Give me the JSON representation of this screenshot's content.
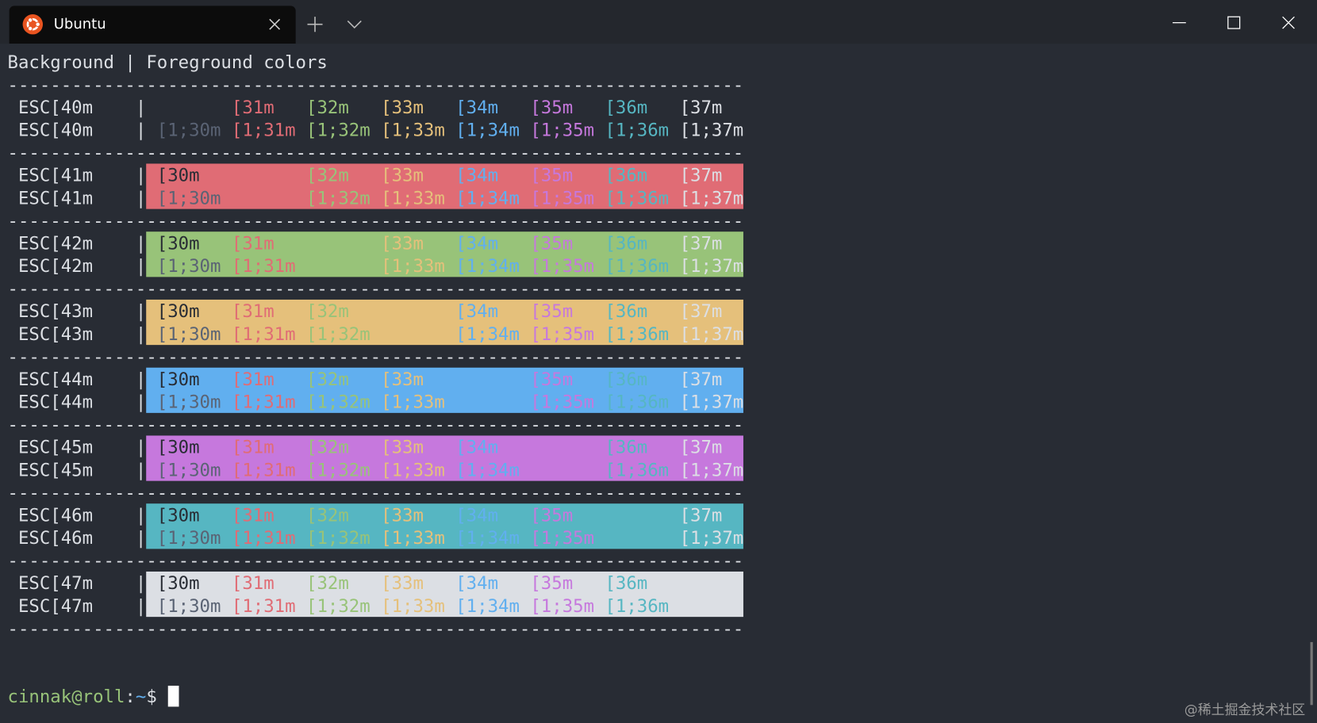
{
  "window": {
    "tab_title": "Ubuntu"
  },
  "terminal": {
    "header": "Background | Foreground colors",
    "separator": "---------------------------------------------------------------------",
    "pipe": "|",
    "colors": [
      "#282c34",
      "#e06c75",
      "#98c379",
      "#e5c07b",
      "#61afef",
      "#c678dd",
      "#56b6c2",
      "#dcdfe4"
    ],
    "bright_black": "#5a6374",
    "blocks": [
      {
        "lines": [
          {
            "label": "ESC[40m",
            "cells": [
              null,
              "[31m",
              "[32m",
              "[33m",
              "[34m",
              "[35m",
              "[36m",
              "[37m"
            ]
          },
          {
            "label": "ESC[40m",
            "cells": [
              "[1;30m",
              "[1;31m",
              "[1;32m",
              "[1;33m",
              "[1;34m",
              "[1;35m",
              "[1;36m",
              "[1;37m"
            ]
          }
        ]
      },
      {
        "lines": [
          {
            "label": "ESC[41m",
            "cells": [
              "[30m",
              null,
              "[32m",
              "[33m",
              "[34m",
              "[35m",
              "[36m",
              "[37m"
            ]
          },
          {
            "label": "ESC[41m",
            "cells": [
              "[1;30m",
              null,
              "[1;32m",
              "[1;33m",
              "[1;34m",
              "[1;35m",
              "[1;36m",
              "[1;37m"
            ]
          }
        ]
      },
      {
        "lines": [
          {
            "label": "ESC[42m",
            "cells": [
              "[30m",
              "[31m",
              null,
              "[33m",
              "[34m",
              "[35m",
              "[36m",
              "[37m"
            ]
          },
          {
            "label": "ESC[42m",
            "cells": [
              "[1;30m",
              "[1;31m",
              null,
              "[1;33m",
              "[1;34m",
              "[1;35m",
              "[1;36m",
              "[1;37m"
            ]
          }
        ]
      },
      {
        "lines": [
          {
            "label": "ESC[43m",
            "cells": [
              "[30m",
              "[31m",
              "[32m",
              null,
              "[34m",
              "[35m",
              "[36m",
              "[37m"
            ]
          },
          {
            "label": "ESC[43m",
            "cells": [
              "[1;30m",
              "[1;31m",
              "[1;32m",
              null,
              "[1;34m",
              "[1;35m",
              "[1;36m",
              "[1;37m"
            ]
          }
        ]
      },
      {
        "lines": [
          {
            "label": "ESC[44m",
            "cells": [
              "[30m",
              "[31m",
              "[32m",
              "[33m",
              null,
              "[35m",
              "[36m",
              "[37m"
            ]
          },
          {
            "label": "ESC[44m",
            "cells": [
              "[1;30m",
              "[1;31m",
              "[1;32m",
              "[1;33m",
              null,
              "[1;35m",
              "[1;36m",
              "[1;37m"
            ]
          }
        ]
      },
      {
        "lines": [
          {
            "label": "ESC[45m",
            "cells": [
              "[30m",
              "[31m",
              "[32m",
              "[33m",
              "[34m",
              null,
              "[36m",
              "[37m"
            ]
          },
          {
            "label": "ESC[45m",
            "cells": [
              "[1;30m",
              "[1;31m",
              "[1;32m",
              "[1;33m",
              "[1;34m",
              null,
              "[1;36m",
              "[1;37m"
            ]
          }
        ]
      },
      {
        "lines": [
          {
            "label": "ESC[46m",
            "cells": [
              "[30m",
              "[31m",
              "[32m",
              "[33m",
              "[34m",
              "[35m",
              null,
              "[37m"
            ]
          },
          {
            "label": "ESC[46m",
            "cells": [
              "[1;30m",
              "[1;31m",
              "[1;32m",
              "[1;33m",
              "[1;34m",
              "[1;35m",
              null,
              "[1;37m"
            ]
          }
        ]
      },
      {
        "lines": [
          {
            "label": "ESC[47m",
            "cells": [
              "[30m",
              "[31m",
              "[32m",
              "[33m",
              "[34m",
              "[35m",
              "[36m",
              null
            ]
          },
          {
            "label": "ESC[47m",
            "cells": [
              "[1;30m",
              "[1;31m",
              "[1;32m",
              "[1;33m",
              "[1;34m",
              "[1;35m",
              "[1;36m",
              null
            ]
          }
        ]
      }
    ],
    "prompt": {
      "user_host": "cinnak@roll",
      "colon": ":",
      "path": "~",
      "symbol": "$"
    }
  },
  "watermark": "@稀土掘金技术社区"
}
